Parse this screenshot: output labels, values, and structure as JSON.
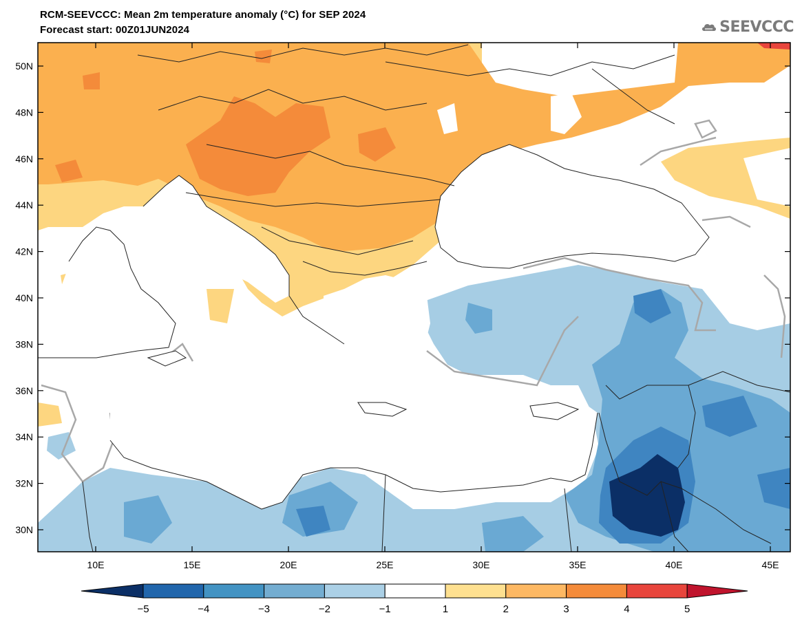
{
  "header": {
    "title": "RCM-SEEVCCC: Mean 2m temperature anomaly (°C) for SEP 2024",
    "subtitle": "Forecast start: 00Z01JUN2024"
  },
  "logo": {
    "text": "SEEVCCC",
    "icon": "cloud-icon"
  },
  "map": {
    "lat_ticks": [
      "50N",
      "48N",
      "46N",
      "44N",
      "42N",
      "40N",
      "38N",
      "36N",
      "34N",
      "32N",
      "30N"
    ],
    "lon_ticks": [
      "10E",
      "15E",
      "20E",
      "25E",
      "30E",
      "35E",
      "40E",
      "45E"
    ],
    "lon_range": [
      7,
      46
    ],
    "lat_range": [
      29,
      51
    ]
  },
  "colorbar": {
    "labels": [
      "−5",
      "−4",
      "−3",
      "−2",
      "−1",
      "1",
      "2",
      "3",
      "4",
      "5"
    ],
    "colors": [
      "#0b2f66",
      "#2166ac",
      "#4393c3",
      "#74add1",
      "#abd0e6",
      "#ffffff",
      "#fee090",
      "#fdb863",
      "#f48b3a",
      "#e8453c",
      "#c0142d"
    ]
  },
  "palette": {
    "warm1": "#fdd680",
    "warm2": "#fbb04f",
    "warm3": "#f48b3a",
    "warm4": "#e8453c",
    "cool1": "#a6cde4",
    "cool2": "#6aa9d3",
    "cool3": "#3f85c1",
    "cool4": "#0b2f66",
    "contour": "#a8a8a8",
    "border": "#222222"
  }
}
